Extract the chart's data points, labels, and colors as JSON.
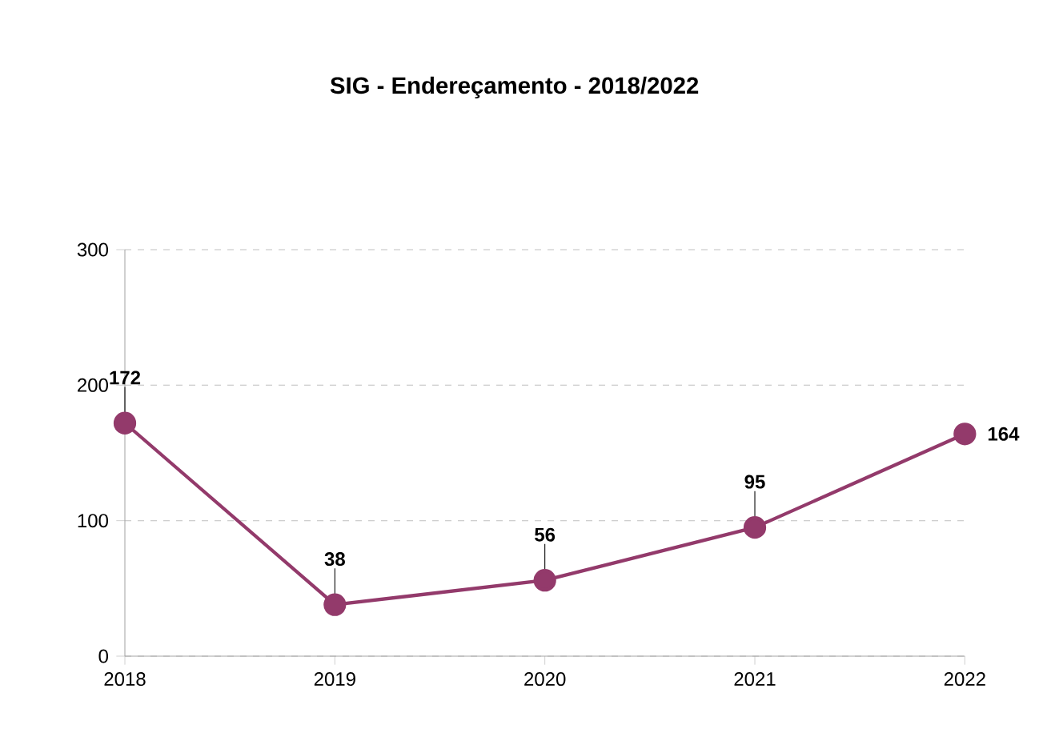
{
  "chart_data": {
    "type": "line",
    "title": "SIG - Endereçamento - 2018/2022",
    "categories": [
      "2018",
      "2019",
      "2020",
      "2021",
      "2022"
    ],
    "series": [
      {
        "color": "#933a6b",
        "values": [
          172,
          38,
          56,
          95,
          164
        ]
      }
    ],
    "ylim": [
      0,
      300
    ],
    "yticks": [
      0,
      100,
      200,
      300
    ],
    "grid": "y",
    "marker": "circle",
    "line_style": "solid",
    "data_labels": true
  }
}
